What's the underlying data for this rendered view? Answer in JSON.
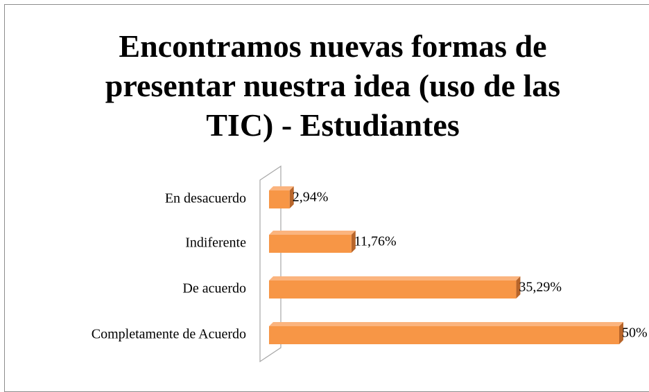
{
  "chart_data": {
    "type": "bar",
    "orientation": "horizontal",
    "title": "Encontramos nuevas formas de presentar nuestra idea (uso de las TIC) - Estudiantes",
    "categories": [
      "En desacuerdo",
      "Indiferente",
      "De acuerdo",
      "Completamente de Acuerdo"
    ],
    "values": [
      2.94,
      11.76,
      35.29,
      50
    ],
    "value_labels": [
      "2,94%",
      "11,76%",
      "35,29%",
      "50%"
    ],
    "color": "#f79646",
    "xlim": [
      0,
      50
    ]
  }
}
